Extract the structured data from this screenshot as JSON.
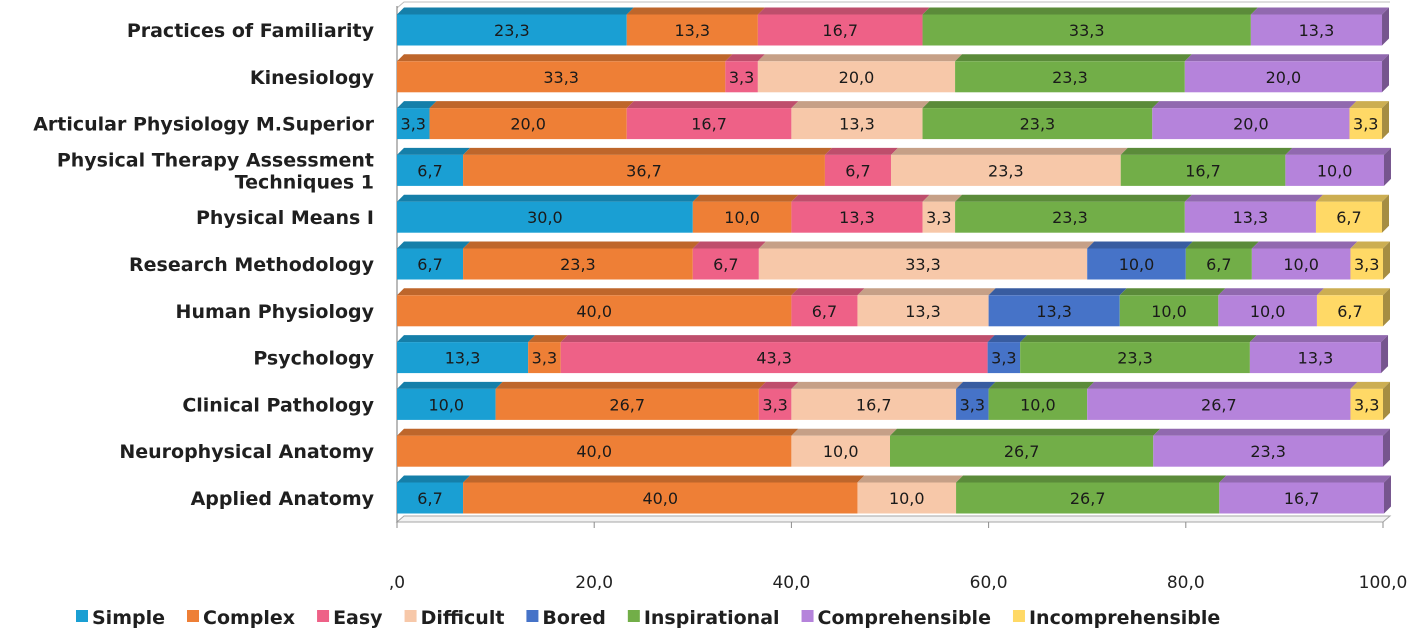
{
  "chart_data": {
    "type": "bar",
    "orientation": "horizontal",
    "stacked": true,
    "three_d": true,
    "grid": false,
    "legend_position": "bottom",
    "xlim": [
      0,
      100
    ],
    "xticks": [
      0,
      20,
      40,
      60,
      80,
      100
    ],
    "xtick_labels": [
      ",0",
      "20,0",
      "40,0",
      "60,0",
      "80,0",
      "100,0"
    ],
    "categories": [
      "Practices of Familiarity",
      "Kinesiology",
      "Articular Physiology M.Superior",
      "Physical Therapy Assessment Techniques 1",
      "Physical Means I",
      "Research Methodology",
      "Human Physiology",
      "Psychology",
      "Clinical Pathology",
      "Neurophysical Anatomy",
      "Applied Anatomy"
    ],
    "category_lines": [
      [
        "Practices of Familiarity"
      ],
      [
        "Kinesiology"
      ],
      [
        "Articular Physiology M.Superior"
      ],
      [
        "Physical Therapy Assessment",
        "Techniques 1"
      ],
      [
        "Physical Means I"
      ],
      [
        "Research Methodology"
      ],
      [
        "Human Physiology"
      ],
      [
        "Psychology"
      ],
      [
        "Clinical Pathology"
      ],
      [
        "Neurophysical Anatomy"
      ],
      [
        "Applied Anatomy"
      ]
    ],
    "series": [
      {
        "name": "Simple",
        "color": "#1a9fd3",
        "values": [
          23.3,
          0,
          3.3,
          6.7,
          30.0,
          6.7,
          0,
          13.3,
          10.0,
          0,
          6.7
        ]
      },
      {
        "name": "Complex",
        "color": "#ee7f36",
        "values": [
          13.3,
          33.3,
          20.0,
          36.7,
          10.0,
          23.3,
          40.0,
          3.3,
          26.7,
          40.0,
          40.0
        ]
      },
      {
        "name": "Easy",
        "color": "#ee6187",
        "values": [
          16.7,
          3.3,
          16.7,
          6.7,
          13.3,
          6.7,
          6.7,
          43.3,
          3.3,
          0,
          0
        ]
      },
      {
        "name": "Difficult",
        "color": "#f7c8a9",
        "values": [
          0,
          20.0,
          13.3,
          23.3,
          3.3,
          33.3,
          13.3,
          0,
          16.7,
          10.0,
          10.0
        ]
      },
      {
        "name": "Bored",
        "color": "#4673c8",
        "values": [
          0,
          0,
          0,
          0,
          0,
          10.0,
          13.3,
          3.3,
          3.3,
          0,
          0
        ]
      },
      {
        "name": "Inspirational",
        "color": "#72ae48",
        "values": [
          33.3,
          23.3,
          23.3,
          16.7,
          23.3,
          6.7,
          10.0,
          23.3,
          10.0,
          26.7,
          26.7
        ]
      },
      {
        "name": "Comprehensible",
        "color": "#b583db",
        "values": [
          13.3,
          20.0,
          20.0,
          10.0,
          13.3,
          10.0,
          10.0,
          13.3,
          26.7,
          23.3,
          16.7
        ]
      },
      {
        "name": "Incomprehensible",
        "color": "#ffd966",
        "values": [
          0,
          0,
          3.3,
          0,
          6.7,
          3.3,
          6.7,
          0,
          3.3,
          0,
          0
        ]
      }
    ]
  }
}
